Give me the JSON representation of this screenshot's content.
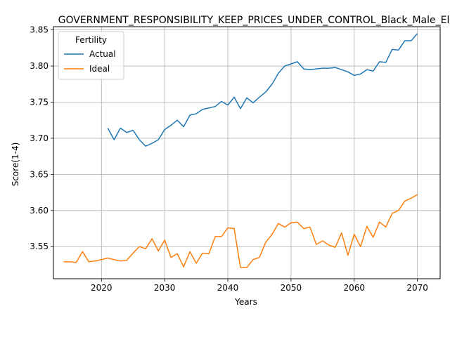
{
  "chart_data": {
    "type": "line",
    "title": "GOVERNMENT_RESPONSIBILITY_KEEP_PRICES_UNDER_CONTROL_Black_Male_Elite",
    "xlabel": "Years",
    "ylabel": "Score(1-4)",
    "xlim": [
      2012.4,
      2073.6
    ],
    "ylim": [
      3.5055,
      3.8545
    ],
    "xticks": [
      2020,
      2030,
      2040,
      2050,
      2060,
      2070
    ],
    "xtick_labels": [
      "2020",
      "2030",
      "2040",
      "2050",
      "2060",
      "2070"
    ],
    "yticks": [
      3.55,
      3.6,
      3.65,
      3.7,
      3.75,
      3.8,
      3.85
    ],
    "ytick_labels": [
      "3.55",
      "3.60",
      "3.65",
      "3.70",
      "3.75",
      "3.80",
      "3.85"
    ],
    "grid": true,
    "legend": {
      "title": "Fertility",
      "placement": "top-left"
    },
    "series": [
      {
        "name": "Actual",
        "color": "#1f77b4",
        "x": [
          2021,
          2022,
          2023,
          2024,
          2025,
          2026,
          2027,
          2028,
          2029,
          2030,
          2031,
          2032,
          2033,
          2034,
          2035,
          2036,
          2037,
          2038,
          2039,
          2040,
          2041,
          2042,
          2043,
          2044,
          2045,
          2046,
          2047,
          2048,
          2049,
          2050,
          2051,
          2052,
          2053,
          2054,
          2055,
          2056,
          2057,
          2058,
          2059,
          2060,
          2061,
          2062,
          2063,
          2064,
          2065,
          2066,
          2067,
          2068,
          2069,
          2070
        ],
        "y": [
          3.714,
          3.698,
          3.714,
          3.708,
          3.711,
          3.698,
          3.689,
          3.693,
          3.698,
          3.712,
          3.718,
          3.725,
          3.716,
          3.732,
          3.734,
          3.74,
          3.742,
          3.744,
          3.751,
          3.746,
          3.757,
          3.741,
          3.756,
          3.749,
          3.757,
          3.764,
          3.775,
          3.79,
          3.8,
          3.803,
          3.806,
          3.796,
          3.795,
          3.796,
          3.797,
          3.797,
          3.798,
          3.795,
          3.792,
          3.787,
          3.789,
          3.795,
          3.793,
          3.806,
          3.805,
          3.823,
          3.822,
          3.835,
          3.835,
          3.845
        ]
      },
      {
        "name": "Ideal",
        "color": "#ff7f0e",
        "x": [
          2014,
          2015,
          2016,
          2017,
          2018,
          2019,
          2020,
          2021,
          2022,
          2023,
          2024,
          2025,
          2026,
          2027,
          2028,
          2029,
          2030,
          2031,
          2032,
          2033,
          2034,
          2035,
          2036,
          2037,
          2038,
          2039,
          2040,
          2041,
          2042,
          2043,
          2044,
          2045,
          2046,
          2047,
          2048,
          2049,
          2050,
          2051,
          2052,
          2053,
          2054,
          2055,
          2056,
          2057,
          2058,
          2059,
          2060,
          2061,
          2062,
          2063,
          2064,
          2065,
          2066,
          2067,
          2068,
          2069,
          2070
        ],
        "y": [
          3.529,
          3.529,
          3.528,
          3.543,
          3.529,
          3.53,
          3.532,
          3.534,
          3.532,
          3.53,
          3.531,
          3.541,
          3.55,
          3.547,
          3.561,
          3.544,
          3.559,
          3.535,
          3.54,
          3.522,
          3.543,
          3.527,
          3.541,
          3.54,
          3.564,
          3.564,
          3.576,
          3.575,
          3.521,
          3.521,
          3.532,
          3.535,
          3.556,
          3.567,
          3.582,
          3.577,
          3.583,
          3.584,
          3.575,
          3.577,
          3.553,
          3.558,
          3.552,
          3.549,
          3.569,
          3.538,
          3.567,
          3.55,
          3.578,
          3.563,
          3.584,
          3.577,
          3.596,
          3.6,
          3.613,
          3.617,
          3.622
        ]
      }
    ]
  }
}
